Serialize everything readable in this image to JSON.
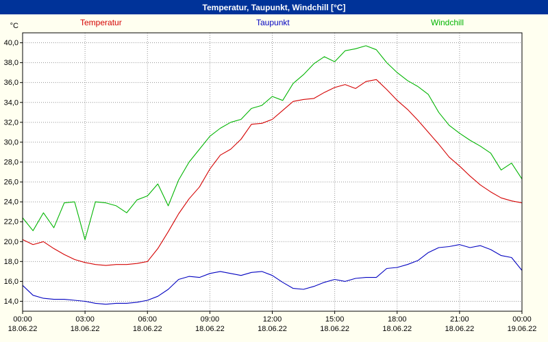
{
  "window": {
    "title": "Temperatur, Taupunkt, Windchill [°C]"
  },
  "colors": {
    "titlebar_bg": "#003399",
    "titlebar_text": "#ffffff",
    "background": "#fffff0",
    "plot_bg": "#ffffff",
    "grid": "#909090",
    "axis": "#000000",
    "temperatur": "#d40000",
    "taupunkt": "#0000c0",
    "windchill": "#00b400"
  },
  "chart_data": {
    "type": "line",
    "title": "Temperatur, Taupunkt, Windchill [°C]",
    "ylabel": "°C",
    "xlabel": "",
    "ylim": [
      13,
      41
    ],
    "xlim_hours": [
      0,
      24
    ],
    "grid": "dotted",
    "legend_position": "top",
    "x_hours": [
      0,
      0.5,
      1,
      1.5,
      2,
      2.5,
      3,
      3.5,
      4,
      4.5,
      5,
      5.5,
      6,
      6.5,
      7,
      7.5,
      8,
      8.5,
      9,
      9.5,
      10,
      10.5,
      11,
      11.5,
      12,
      12.5,
      13,
      13.5,
      14,
      14.5,
      15,
      15.5,
      16,
      16.5,
      17,
      17.5,
      18,
      18.5,
      19,
      19.5,
      20,
      20.5,
      21,
      21.5,
      22,
      22.5,
      23,
      23.5,
      24
    ],
    "series": [
      {
        "name": "Temperatur",
        "color": "#d40000",
        "values": [
          20.2,
          19.7,
          20.0,
          19.3,
          18.7,
          18.2,
          17.9,
          17.7,
          17.6,
          17.7,
          17.7,
          17.8,
          18.0,
          19.3,
          21.0,
          22.8,
          24.3,
          25.5,
          27.3,
          28.7,
          29.3,
          30.3,
          31.8,
          31.9,
          32.3,
          33.2,
          34.1,
          34.3,
          34.4,
          35.0,
          35.5,
          35.8,
          35.4,
          36.1,
          36.3,
          35.3,
          34.2,
          33.3,
          32.2,
          31.0,
          29.8,
          28.5,
          27.6,
          26.6,
          25.7,
          25.0,
          24.4,
          24.1,
          23.9
        ]
      },
      {
        "name": "Taupunkt",
        "color": "#0000c0",
        "values": [
          15.6,
          14.6,
          14.3,
          14.2,
          14.2,
          14.1,
          14.0,
          13.8,
          13.7,
          13.8,
          13.8,
          13.9,
          14.1,
          14.5,
          15.2,
          16.2,
          16.5,
          16.4,
          16.8,
          17.0,
          16.8,
          16.6,
          16.9,
          17.0,
          16.6,
          15.9,
          15.3,
          15.2,
          15.5,
          15.9,
          16.2,
          16.0,
          16.3,
          16.4,
          16.4,
          17.3,
          17.4,
          17.7,
          18.1,
          18.9,
          19.4,
          19.5,
          19.7,
          19.4,
          19.6,
          19.2,
          18.6,
          18.4,
          17.1
        ]
      },
      {
        "name": "Windchill",
        "color": "#00b400",
        "values": [
          22.4,
          21.1,
          22.9,
          21.4,
          23.9,
          24.0,
          20.2,
          24.0,
          23.9,
          23.6,
          22.9,
          24.2,
          24.6,
          25.8,
          23.6,
          26.2,
          28.0,
          29.3,
          30.6,
          31.4,
          32.0,
          32.3,
          33.4,
          33.7,
          34.6,
          34.2,
          35.9,
          36.8,
          37.9,
          38.6,
          38.1,
          39.2,
          39.4,
          39.7,
          39.3,
          38.0,
          37.0,
          36.2,
          35.6,
          34.8,
          33.0,
          31.7,
          30.9,
          30.2,
          29.6,
          28.9,
          27.2,
          27.9,
          26.3
        ]
      }
    ],
    "y_ticks": {
      "values": [
        14,
        16,
        18,
        20,
        22,
        24,
        26,
        28,
        30,
        32,
        34,
        36,
        38,
        40
      ],
      "labels": [
        "14,0",
        "16,0",
        "18,0",
        "20,0",
        "22,0",
        "24,0",
        "26,0",
        "28,0",
        "30,0",
        "32,0",
        "34,0",
        "36,0",
        "38,0",
        "40,0"
      ]
    },
    "x_ticks": {
      "hours": [
        0,
        3,
        6,
        9,
        12,
        15,
        18,
        21,
        24
      ],
      "time_labels": [
        "00:00",
        "03:00",
        "06:00",
        "09:00",
        "12:00",
        "15:00",
        "18:00",
        "21:00",
        "00:00"
      ],
      "date_labels": [
        "18.06.22",
        "18.06.22",
        "18.06.22",
        "18.06.22",
        "18.06.22",
        "18.06.22",
        "18.06.22",
        "18.06.22",
        "19.06.22"
      ]
    }
  }
}
